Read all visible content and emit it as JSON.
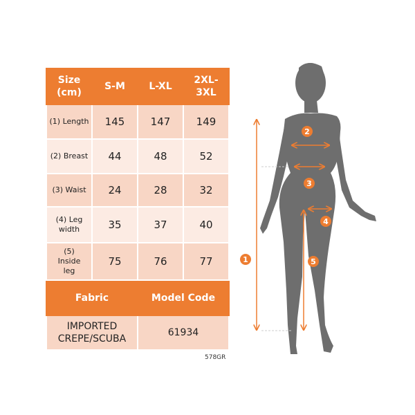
{
  "table": {
    "header": [
      "Size (cm)",
      "S-M",
      "L-XL",
      "2XL-3XL"
    ],
    "rows": [
      {
        "label": "(1) Length",
        "values": [
          "145",
          "147",
          "149"
        ]
      },
      {
        "label": "(2) Breast",
        "values": [
          "44",
          "48",
          "52"
        ]
      },
      {
        "label": "(3) Waist",
        "values": [
          "24",
          "28",
          "32"
        ]
      },
      {
        "label": "(4) Leg width",
        "values": [
          "35",
          "37",
          "40"
        ]
      },
      {
        "label": "(5) Inside leg",
        "values": [
          "75",
          "76",
          "77"
        ]
      }
    ],
    "fabric_header": "Fabric",
    "model_code_header": "Model Code",
    "fabric": "IMPORTED CREPE/SCUBA",
    "model_code": "61934"
  },
  "product_code": "578GR",
  "figure": {
    "markers": [
      "1",
      "2",
      "3",
      "4",
      "5"
    ],
    "silhouette_color": "#6E6E6E",
    "accent_color": "#ED7D31"
  }
}
